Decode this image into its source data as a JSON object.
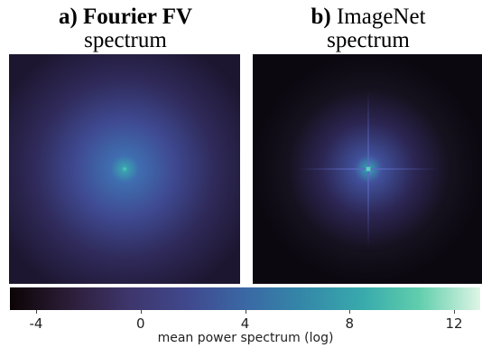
{
  "panels": [
    {
      "prefix": "a)",
      "name": "Fourier FV",
      "subtitle": "spectrum",
      "name_bold": true
    },
    {
      "prefix": "b)",
      "name": "ImageNet",
      "subtitle": "spectrum",
      "name_bold": false
    }
  ],
  "colorbar": {
    "label": "mean power spectrum (log)",
    "range": [
      -5,
      13
    ],
    "ticks": [
      "-4",
      "0",
      "4",
      "8",
      "12"
    ],
    "tick_values": [
      -4,
      0,
      4,
      8,
      12
    ],
    "colormap": "mako"
  },
  "chart_data": [
    {
      "type": "heatmap",
      "title": "a) Fourier FV spectrum",
      "description_values": {
        "center_value": 8,
        "background_value": -3.5,
        "falloff": "broad radial"
      },
      "cross_artifact": false
    },
    {
      "type": "heatmap",
      "title": "b) ImageNet spectrum",
      "description_values": {
        "center_value": 9,
        "background_value": -5,
        "falloff": "narrow radial with horizontal/vertical cross"
      },
      "cross_artifact": true
    }
  ]
}
